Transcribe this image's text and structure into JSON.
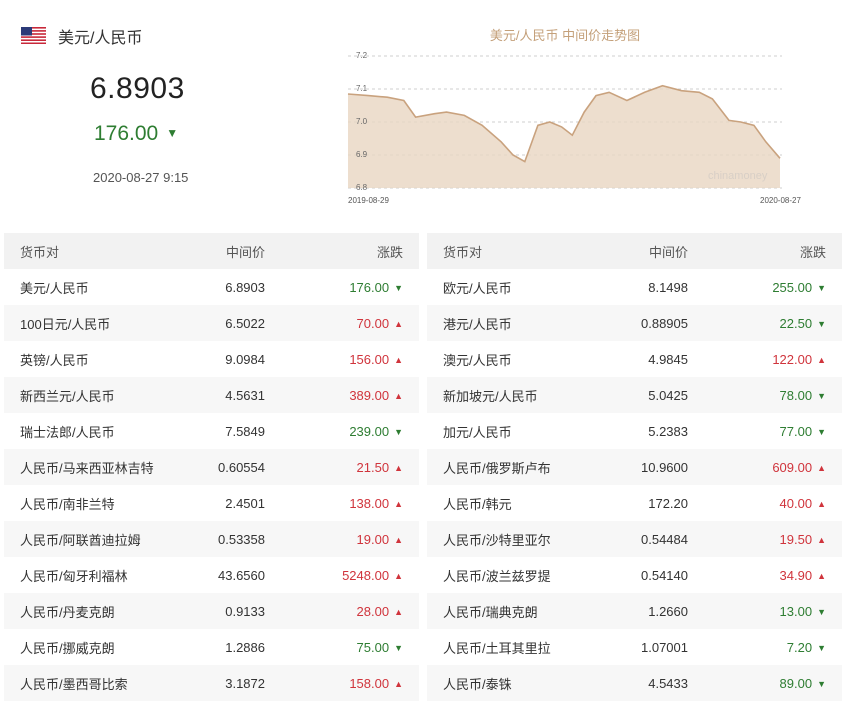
{
  "header": {
    "pair_name": "美元/人民币",
    "rate": "6.8903",
    "change": "176.00",
    "change_dir": "down",
    "timestamp": "2020-08-27 9:15"
  },
  "chart": {
    "title": "美元/人民币 中间价走势图",
    "watermark": "chinamoney",
    "x_start": "2019-08-29",
    "x_end": "2020-08-27",
    "y_ticks": [
      "7.2",
      "7.1",
      "7.0",
      "6.9",
      "6.8"
    ]
  },
  "chart_data": {
    "type": "area",
    "title": "美元/人民币 中间价走势图",
    "xlabel": "",
    "ylabel": "",
    "x_ticks": [
      "2019-08-29",
      "2020-08-27"
    ],
    "y_ticks": [
      7.2,
      7.1,
      7.0,
      6.9,
      6.8
    ],
    "ylim": [
      6.8,
      7.2
    ],
    "grid": true,
    "legend": "none",
    "series": [
      {
        "x": [
          "2019-08-29",
          "2019-09-15",
          "2019-10-01",
          "2019-10-15",
          "2019-10-25",
          "2019-11-10",
          "2019-11-20",
          "2019-12-05",
          "2019-12-20",
          "2020-01-05",
          "2020-01-15",
          "2020-01-25",
          "2020-02-05",
          "2020-02-15",
          "2020-02-25",
          "2020-03-05",
          "2020-03-15",
          "2020-03-25",
          "2020-04-05",
          "2020-04-20",
          "2020-05-05",
          "2020-05-20",
          "2020-06-05",
          "2020-06-20",
          "2020-07-01",
          "2020-07-15",
          "2020-07-25",
          "2020-08-05",
          "2020-08-15",
          "2020-08-27"
        ],
        "values": [
          7.085,
          7.08,
          7.075,
          7.065,
          7.015,
          7.025,
          7.03,
          7.02,
          6.99,
          6.94,
          6.9,
          6.88,
          6.99,
          7.0,
          6.985,
          6.96,
          7.03,
          7.08,
          7.09,
          7.065,
          7.09,
          7.11,
          7.095,
          7.09,
          7.07,
          7.005,
          7.0,
          6.99,
          6.94,
          6.89
        ]
      }
    ]
  },
  "table": {
    "headers": [
      "货币对",
      "中间价",
      "涨跌"
    ],
    "left": [
      {
        "pair": "美元/人民币",
        "mid": "6.8903",
        "change": "176.00",
        "dir": "down"
      },
      {
        "pair": "100日元/人民币",
        "mid": "6.5022",
        "change": "70.00",
        "dir": "up"
      },
      {
        "pair": "英镑/人民币",
        "mid": "9.0984",
        "change": "156.00",
        "dir": "up"
      },
      {
        "pair": "新西兰元/人民币",
        "mid": "4.5631",
        "change": "389.00",
        "dir": "up"
      },
      {
        "pair": "瑞士法郎/人民币",
        "mid": "7.5849",
        "change": "239.00",
        "dir": "down"
      },
      {
        "pair": "人民币/马来西亚林吉特",
        "mid": "0.60554",
        "change": "21.50",
        "dir": "up"
      },
      {
        "pair": "人民币/南非兰特",
        "mid": "2.4501",
        "change": "138.00",
        "dir": "up"
      },
      {
        "pair": "人民币/阿联酋迪拉姆",
        "mid": "0.53358",
        "change": "19.00",
        "dir": "up"
      },
      {
        "pair": "人民币/匈牙利福林",
        "mid": "43.6560",
        "change": "5248.00",
        "dir": "up"
      },
      {
        "pair": "人民币/丹麦克朗",
        "mid": "0.9133",
        "change": "28.00",
        "dir": "up"
      },
      {
        "pair": "人民币/挪威克朗",
        "mid": "1.2886",
        "change": "75.00",
        "dir": "down"
      },
      {
        "pair": "人民币/墨西哥比索",
        "mid": "3.1872",
        "change": "158.00",
        "dir": "up"
      }
    ],
    "right": [
      {
        "pair": "欧元/人民币",
        "mid": "8.1498",
        "change": "255.00",
        "dir": "down"
      },
      {
        "pair": "港元/人民币",
        "mid": "0.88905",
        "change": "22.50",
        "dir": "down"
      },
      {
        "pair": "澳元/人民币",
        "mid": "4.9845",
        "change": "122.00",
        "dir": "up"
      },
      {
        "pair": "新加坡元/人民币",
        "mid": "5.0425",
        "change": "78.00",
        "dir": "down"
      },
      {
        "pair": "加元/人民币",
        "mid": "5.2383",
        "change": "77.00",
        "dir": "down"
      },
      {
        "pair": "人民币/俄罗斯卢布",
        "mid": "10.9600",
        "change": "609.00",
        "dir": "up"
      },
      {
        "pair": "人民币/韩元",
        "mid": "172.20",
        "change": "40.00",
        "dir": "up"
      },
      {
        "pair": "人民币/沙特里亚尔",
        "mid": "0.54484",
        "change": "19.50",
        "dir": "up"
      },
      {
        "pair": "人民币/波兰兹罗提",
        "mid": "0.54140",
        "change": "34.90",
        "dir": "up"
      },
      {
        "pair": "人民币/瑞典克朗",
        "mid": "1.2660",
        "change": "13.00",
        "dir": "down"
      },
      {
        "pair": "人民币/土耳其里拉",
        "mid": "1.07001",
        "change": "7.20",
        "dir": "down"
      },
      {
        "pair": "人民币/泰铢",
        "mid": "4.5433",
        "change": "89.00",
        "dir": "down"
      }
    ]
  },
  "colors": {
    "up": "#d0343c",
    "down": "#2e7d32",
    "chart_line": "#c9a27e",
    "chart_fill": "#e9d6c2"
  },
  "icons": {
    "flag": "us-flag-icon",
    "down": "triangle-down-icon",
    "up": "triangle-up-icon"
  }
}
